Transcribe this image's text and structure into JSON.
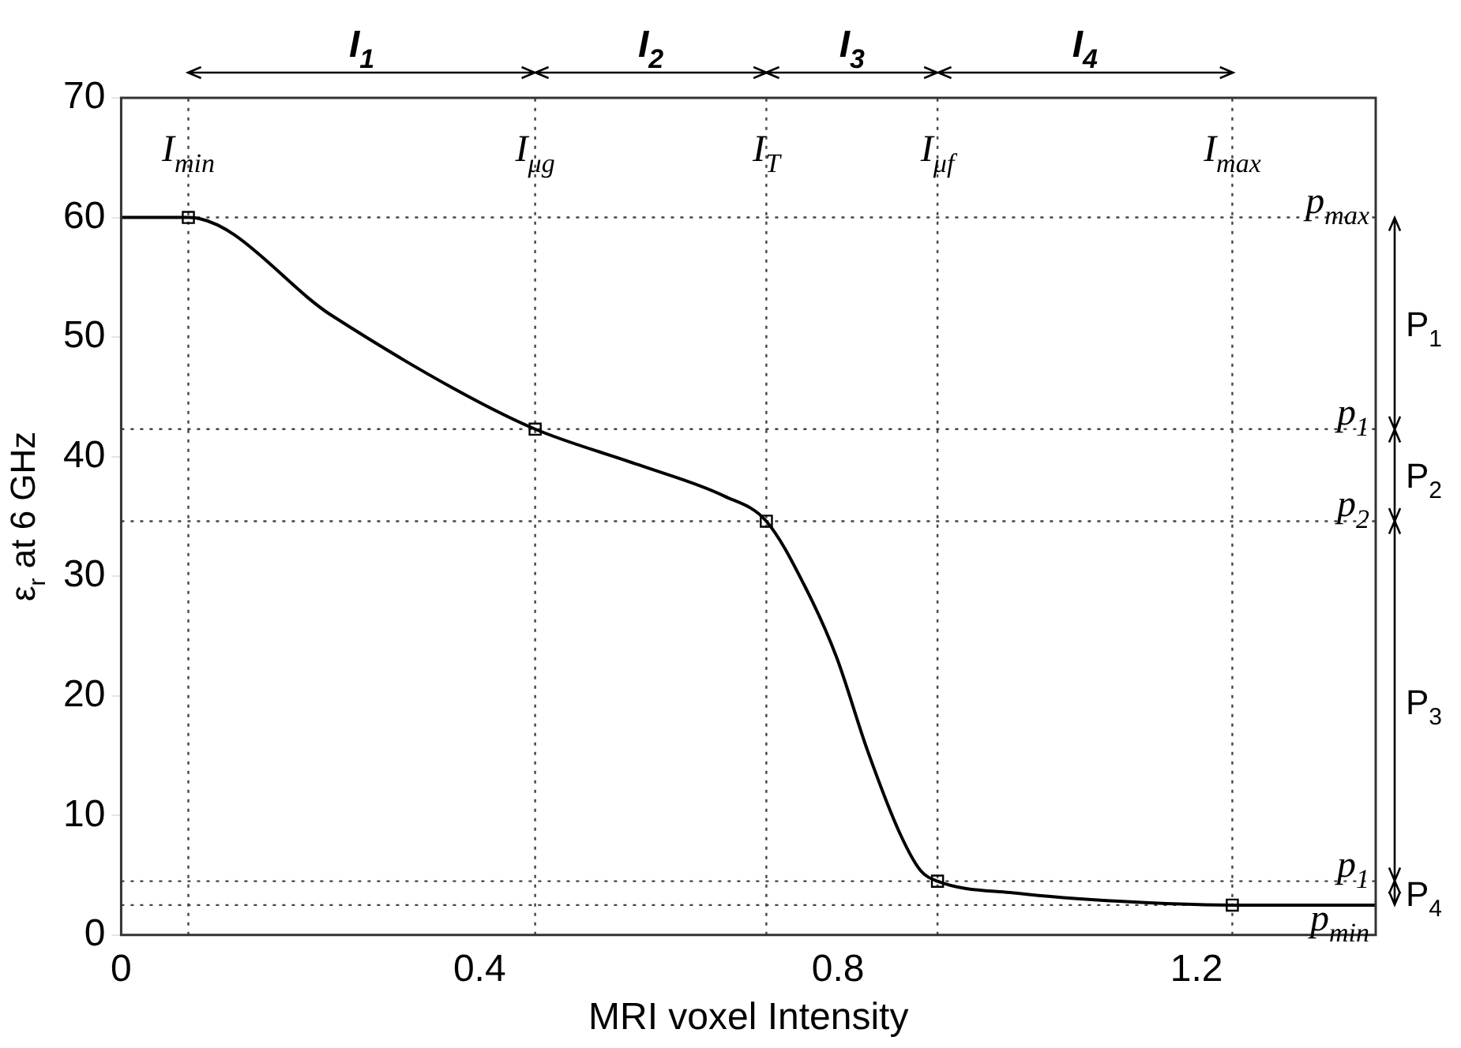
{
  "chart_data": {
    "type": "line",
    "xlabel": "MRI voxel Intensity",
    "ylabel": "ε$_{r}$ at 6 GHz",
    "xlim": [
      0,
      1.4
    ],
    "xticks": [
      0,
      0.4,
      0.8,
      1.2
    ],
    "ylim": [
      0,
      70
    ],
    "yticks": [
      0,
      10,
      20,
      30,
      40,
      50,
      60,
      70
    ],
    "series": [
      {
        "marker": "none",
        "color": "#000000",
        "x": [
          0,
          0.075,
          0.235,
          0.371,
          0.462,
          0.578,
          0.673,
          0.72,
          0.762,
          0.798,
          0.833,
          0.869,
          0.892,
          0.911,
          0.999,
          1.118,
          1.24,
          1.4
        ],
        "values": [
          60,
          60,
          51.8,
          45.7,
          42.3,
          39.3,
          36.7,
          34.6,
          29.3,
          23.3,
          15.4,
          8.5,
          5.4,
          4.5,
          3.5,
          2.8,
          2.5,
          2.5
        ]
      },
      {
        "type": "scatter",
        "marker": "square",
        "color": "#000000",
        "x": [
          0.075,
          0.462,
          0.72,
          0.911,
          1.24
        ],
        "values": [
          60,
          42.3,
          34.6,
          4.5,
          2.5
        ]
      }
    ],
    "ref_lines": [
      {
        "axis": "x",
        "value": 0.075,
        "label": "I$_{min}$",
        "line_style": "dotted"
      },
      {
        "axis": "x",
        "value": 0.462,
        "label": "I$_{μg}$",
        "line_style": "dotted"
      },
      {
        "axis": "x",
        "value": 0.72,
        "label": "I$_{T}$",
        "line_style": "dotted"
      },
      {
        "axis": "x",
        "value": 0.911,
        "label": "I$_{μf}$",
        "line_style": "dotted"
      },
      {
        "axis": "x",
        "value": 1.24,
        "label": "I$_{max}$",
        "line_style": "dotted"
      },
      {
        "axis": "y",
        "value": 60,
        "label": "p$_{max}$",
        "line_style": "dotted"
      },
      {
        "axis": "y",
        "value": 42.3,
        "label": "p$_{1}$",
        "line_style": "dotted"
      },
      {
        "axis": "y",
        "value": 34.6,
        "label": "p$_{2}$",
        "line_style": "dotted"
      },
      {
        "axis": "y",
        "value": 4.5,
        "label": "p$_{1}$",
        "line_style": "dotted"
      },
      {
        "axis": "y",
        "value": 2.5,
        "label": "p$_{min}$",
        "line_style": "dotted"
      }
    ],
    "annotations": [
      "I$_{1}$",
      "I$_{2}$",
      "I$_{3}$",
      "I$_{4}$",
      "P$_{1}$",
      "P$_{2}$",
      "P$_{3}$",
      "P$_{4}$"
    ]
  }
}
